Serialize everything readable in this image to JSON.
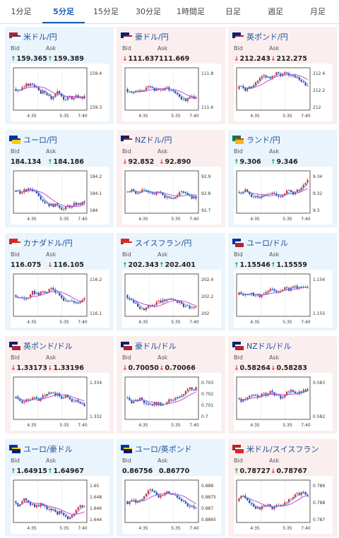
{
  "tabs": [
    {
      "label": "1分足",
      "active": false
    },
    {
      "label": "5分足",
      "active": true
    },
    {
      "label": "15分足",
      "active": false
    },
    {
      "label": "30分足",
      "active": false
    },
    {
      "label": "1時間足",
      "active": false
    },
    {
      "label": "日足",
      "active": false
    },
    {
      "label": "週足",
      "active": false
    },
    {
      "label": "月足",
      "active": false
    }
  ],
  "labels": {
    "bid": "Bid",
    "ask": "Ask"
  },
  "colors": {
    "up": "#199a3c",
    "down": "#d13a3a",
    "candle_up": "#d8262c",
    "candle_down": "#2b3fb5",
    "ma_short": "#3aa7e0",
    "ma_long": "#cc33cc"
  },
  "xticks": [
    "4:35",
    "5:35",
    "7:40"
  ],
  "cards": [
    {
      "pair": "米ドル/円",
      "trend": "up",
      "bid_dir": "up",
      "bid": "159.365",
      "ask_dir": "up",
      "ask": "159.389",
      "flag": [
        "#b22234",
        "#ffffff",
        "#3c3b6e"
      ],
      "yticks": [
        "159.4",
        "159.3"
      ]
    },
    {
      "pair": "豪ドル/円",
      "trend": "down",
      "bid_dir": "down",
      "bid": "111.637",
      "ask_dir": null,
      "ask": "111.669",
      "flag": [
        "#012169",
        "#ffffff",
        "#c8102e"
      ],
      "yticks": [
        "111.8",
        "111.6"
      ]
    },
    {
      "pair": "英ポンド/円",
      "trend": "down",
      "bid_dir": "down",
      "bid": "212.243",
      "ask_dir": "down",
      "ask": "212.275",
      "flag": [
        "#012169",
        "#ffffff",
        "#c8102e"
      ],
      "yticks": [
        "212.4",
        "212.2",
        "212"
      ]
    },
    {
      "pair": "ユーロ/円",
      "trend": "up",
      "bid_dir": null,
      "bid": "184.134",
      "ask_dir": "up",
      "ask": "184.186",
      "flag": [
        "#003399",
        "#ffcc00",
        "#003399"
      ],
      "yticks": [
        "184.2",
        "184.1",
        "184"
      ]
    },
    {
      "pair": "NZドル/円",
      "trend": "down",
      "bid_dir": "down",
      "bid": "92.852",
      "ask_dir": "down",
      "ask": "92.890",
      "flag": [
        "#012169",
        "#ffffff",
        "#c8102e"
      ],
      "yticks": [
        "92.9",
        "92.8",
        "92.7"
      ]
    },
    {
      "pair": "ランド/円",
      "trend": "up",
      "bid_dir": "up",
      "bid": "9.306",
      "ask_dir": "up",
      "ask": "9.346",
      "flag": [
        "#007a4d",
        "#ffb612",
        "#de3831"
      ],
      "yticks": [
        "9.34",
        "9.32",
        "9.3"
      ]
    },
    {
      "pair": "カナダドル/円",
      "trend": "up",
      "bid_dir": null,
      "bid": "116.075",
      "ask_dir": "down",
      "ask": "116.105",
      "flag": [
        "#d52b1e",
        "#ffffff",
        "#d52b1e"
      ],
      "yticks": [
        "116.2",
        "116.1"
      ]
    },
    {
      "pair": "スイスフラン/円",
      "trend": "up",
      "bid_dir": "up",
      "bid": "202.343",
      "ask_dir": "up",
      "ask": "202.401",
      "flag": [
        "#d52b1e",
        "#ffffff",
        "#d52b1e"
      ],
      "yticks": [
        "202.4",
        "202.2",
        "202"
      ]
    },
    {
      "pair": "ユーロ/ドル",
      "trend": "up",
      "bid_dir": "up",
      "bid": "1.15546",
      "ask_dir": "up",
      "ask": "1.15559",
      "flag": [
        "#003399",
        "#b22234",
        "#ffffff"
      ],
      "yticks": [
        "1.156",
        "1.155"
      ]
    },
    {
      "pair": "英ポンド/ドル",
      "trend": "down",
      "bid_dir": "down",
      "bid": "1.33173",
      "ask_dir": "down",
      "ask": "1.33196",
      "flag": [
        "#012169",
        "#b22234",
        "#ffffff"
      ],
      "yticks": [
        "1.334",
        "1.332"
      ]
    },
    {
      "pair": "豪ドル/ドル",
      "trend": "down",
      "bid_dir": "down",
      "bid": "0.70050",
      "ask_dir": "down",
      "ask": "0.70066",
      "flag": [
        "#012169",
        "#b22234",
        "#ffffff"
      ],
      "yticks": [
        "0.703",
        "0.702",
        "0.701",
        "0.7"
      ]
    },
    {
      "pair": "NZドル/ドル",
      "trend": "down",
      "bid_dir": "down",
      "bid": "0.58264",
      "ask_dir": "down",
      "ask": "0.58283",
      "flag": [
        "#012169",
        "#b22234",
        "#ffffff"
      ],
      "yticks": [
        "0.583",
        "0.582"
      ]
    },
    {
      "pair": "ユーロ/豪ドル",
      "trend": "up",
      "bid_dir": "up",
      "bid": "1.64915",
      "ask_dir": "up",
      "ask": "1.64967",
      "flag": [
        "#003399",
        "#012169",
        "#ffcc00"
      ],
      "yticks": [
        "1.65",
        "1.648",
        "1.646",
        "1.644"
      ]
    },
    {
      "pair": "ユーロ/英ポンド",
      "trend": "up",
      "bid_dir": null,
      "bid": "0.86756",
      "ask_dir": null,
      "ask": "0.86770",
      "flag": [
        "#003399",
        "#012169",
        "#ffcc00"
      ],
      "yticks": [
        "0.888",
        "0.8875",
        "0.887",
        "0.8865"
      ]
    },
    {
      "pair": "米ドル/スイスフラン",
      "trend": "down",
      "bid_dir": "up",
      "bid": "0.78727",
      "ask_dir": "down",
      "ask": "0.78767",
      "flag": [
        "#b22234",
        "#d52b1e",
        "#ffffff"
      ],
      "yticks": [
        "0.789",
        "0.788",
        "0.787"
      ]
    }
  ]
}
